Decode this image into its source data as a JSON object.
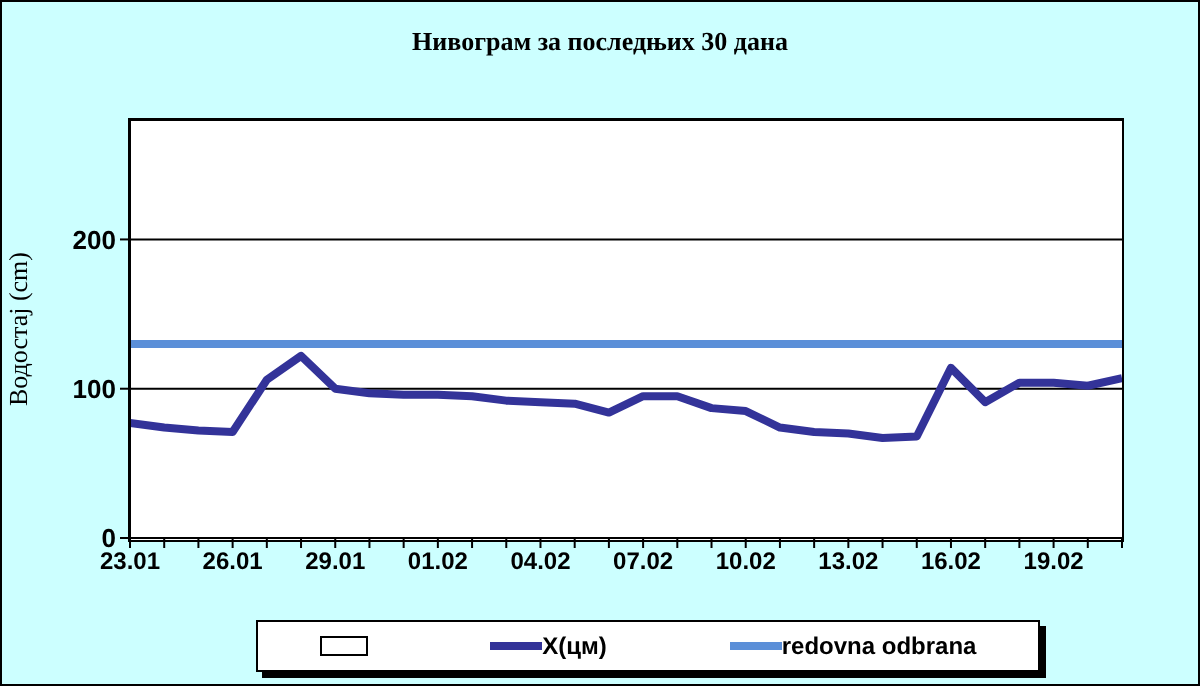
{
  "chart_data": {
    "type": "line",
    "title": "Нивограм за последњих 30 дана",
    "ylabel": "Водостај (cm)",
    "categories": [
      "23.01",
      null,
      null,
      "26.01",
      null,
      null,
      "29.01",
      null,
      null,
      "01.02",
      null,
      null,
      "04.02",
      null,
      null,
      "07.02",
      null,
      null,
      "10.02",
      null,
      null,
      "13.02",
      null,
      null,
      "16.02",
      null,
      null,
      "19.02",
      null,
      null
    ],
    "series": [
      {
        "name": "X(цм)",
        "color": "#333399",
        "values": [
          77,
          74,
          72,
          71,
          106,
          122,
          100,
          97,
          96,
          96,
          95,
          92,
          91,
          90,
          84,
          95,
          95,
          87,
          85,
          74,
          71,
          70,
          67,
          68,
          114,
          91,
          104,
          104,
          102,
          107
        ]
      }
    ],
    "ref_lines": [
      {
        "axis": "y",
        "value": 130,
        "label": "redovna odbrana",
        "color": "#5b8fd8"
      }
    ],
    "ylim": [
      0,
      280
    ],
    "yticks": [
      0,
      100,
      200
    ],
    "grid": "y",
    "legend": "bottom",
    "marker": "none",
    "line_style": "solid"
  }
}
